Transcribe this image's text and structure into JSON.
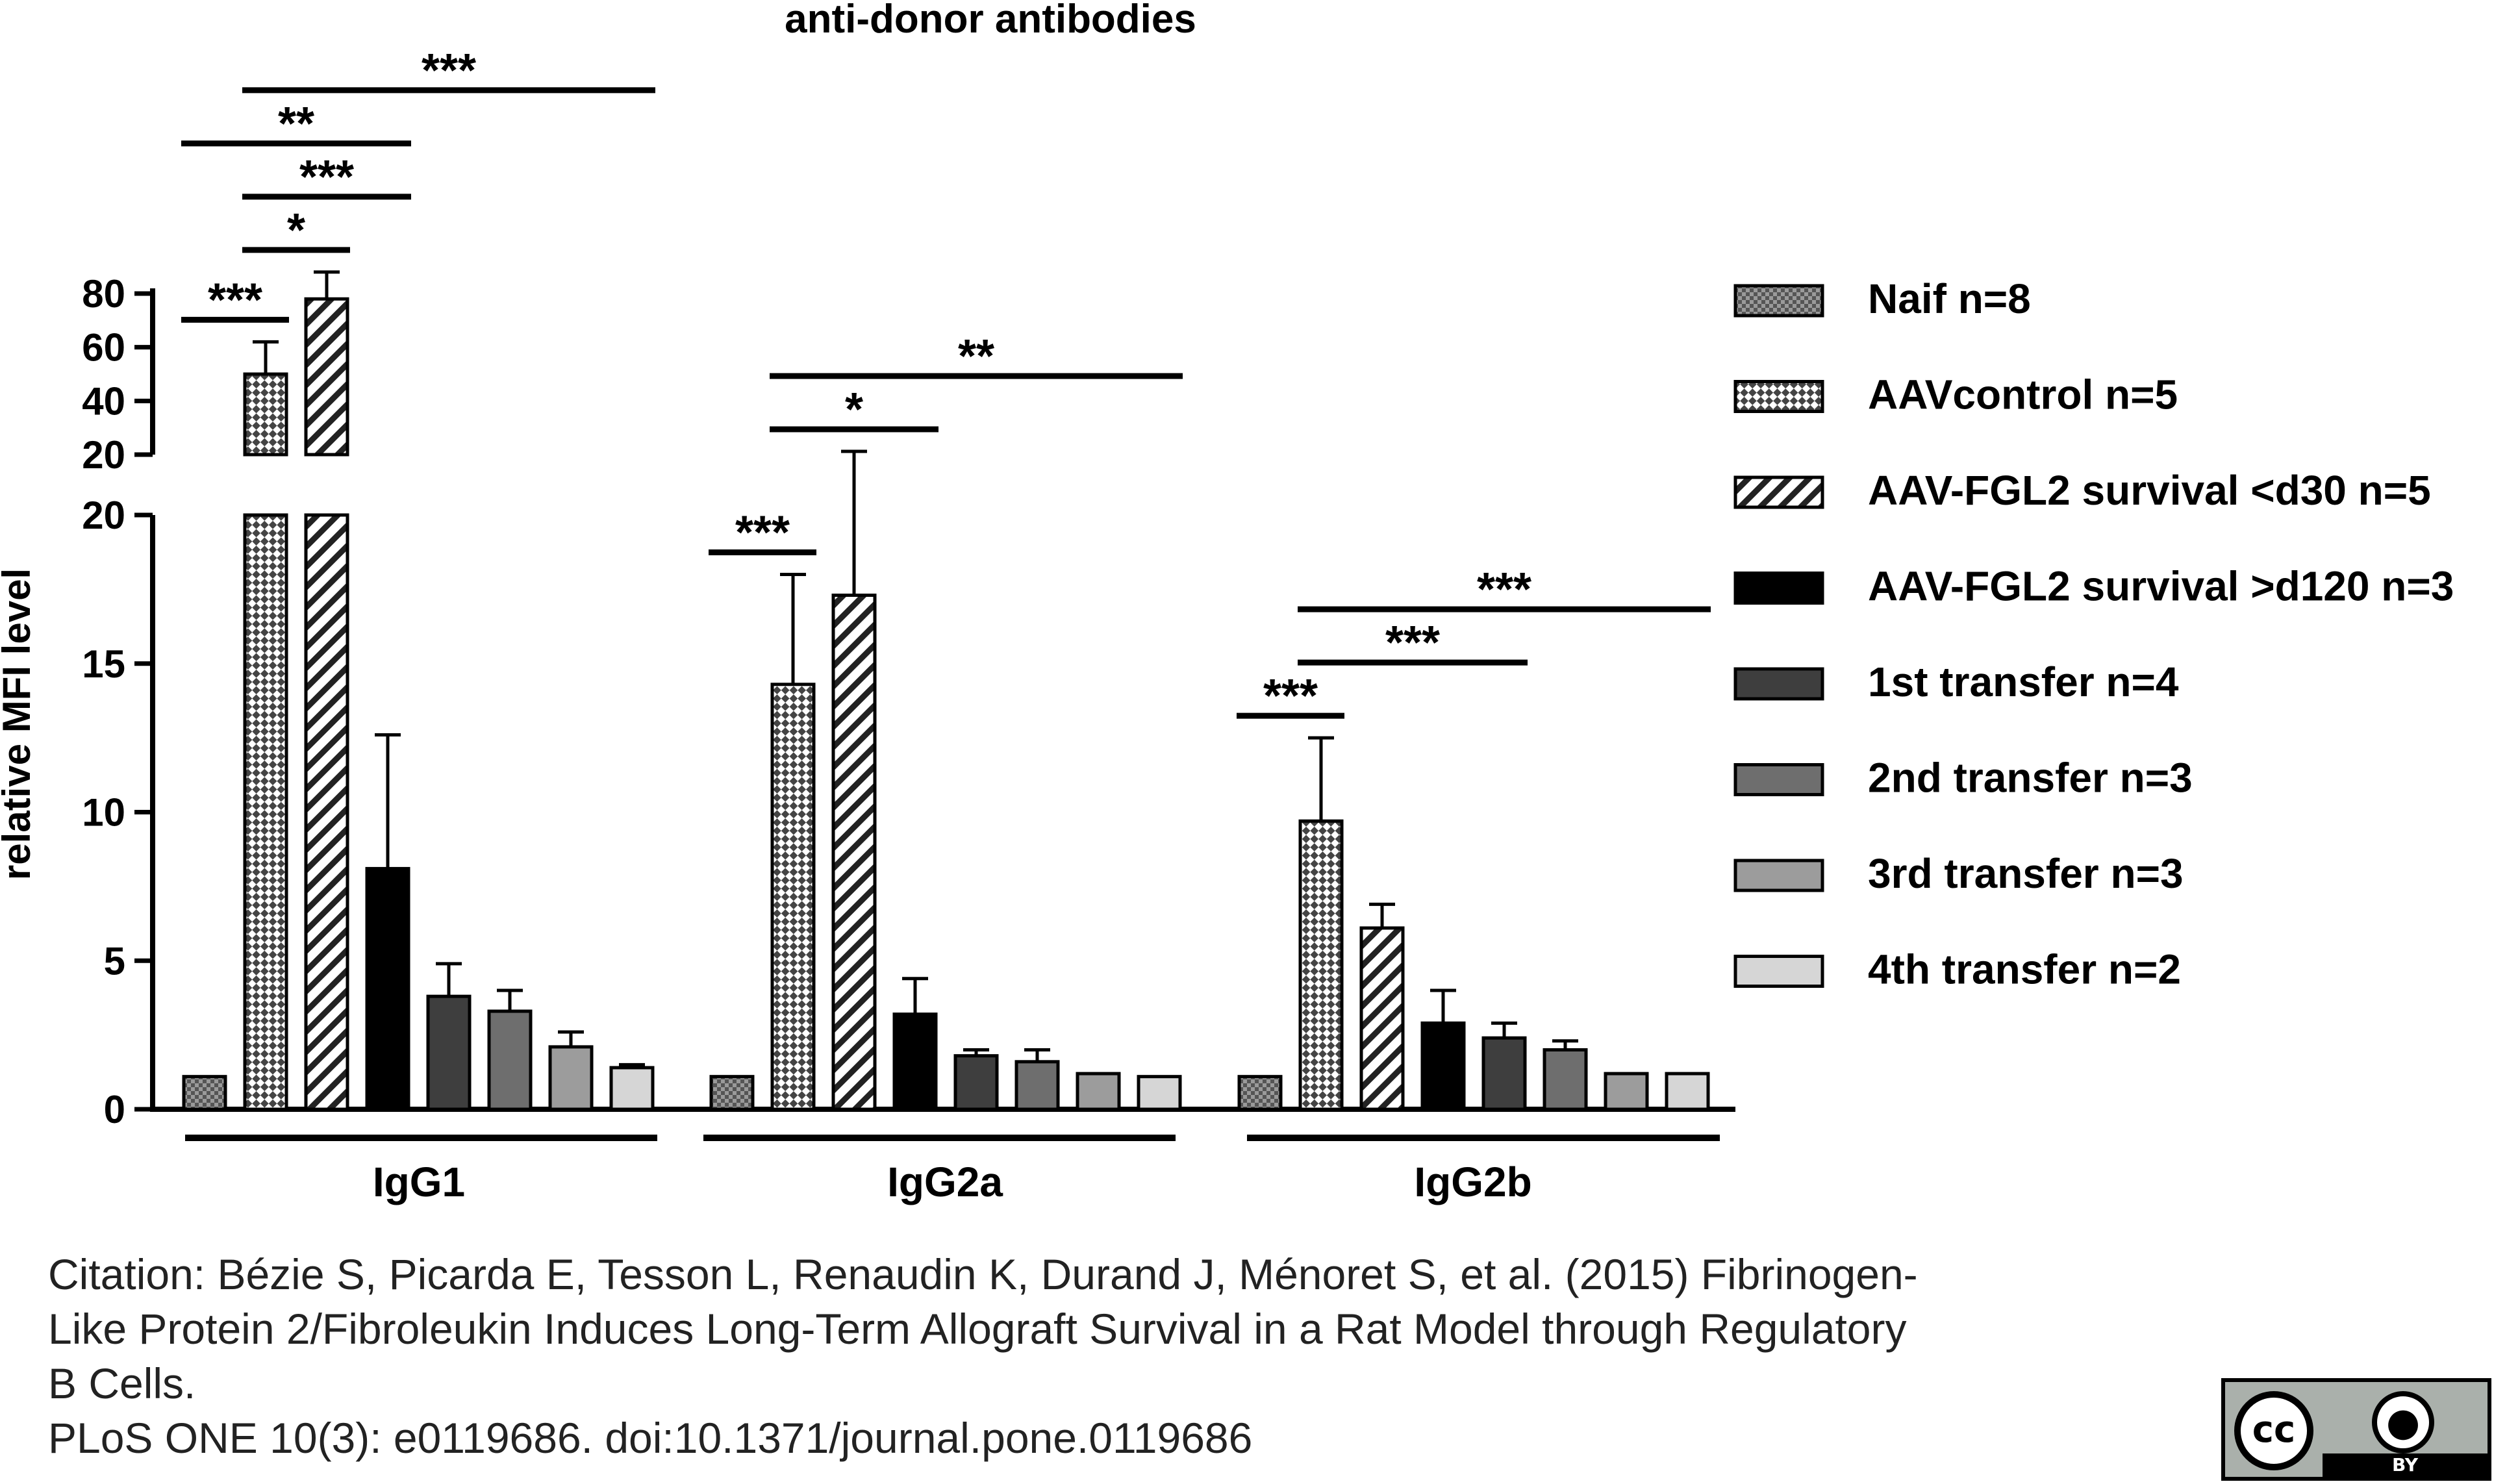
{
  "chart_data": {
    "type": "bar",
    "title": "anti-donor antibodies",
    "ylabel": "relative MFI level",
    "xlabel": "",
    "categories": [
      "IgG1",
      "IgG2a",
      "IgG2b"
    ],
    "y_axis": {
      "broken": true,
      "lower_range": [
        0,
        20
      ],
      "lower_ticks": [
        "0",
        "5",
        "10",
        "15",
        "20"
      ],
      "upper_range": [
        20,
        80
      ],
      "upper_ticks": [
        "20",
        "40",
        "60",
        "80"
      ]
    },
    "series": [
      {
        "name": "Naif n=8",
        "pattern": "dense-checker",
        "values": [
          1.1,
          1.1,
          1.1
        ],
        "errors": [
          0,
          0,
          0
        ]
      },
      {
        "name": "AAVcontrol  n=5",
        "pattern": "checker",
        "values": [
          50,
          14.3,
          9.7
        ],
        "errors": [
          12,
          3.7,
          2.8
        ]
      },
      {
        "name": "AAV-FGL2 survival <d30 n=5",
        "pattern": "diagonal",
        "values": [
          78,
          17.3,
          6.1
        ],
        "errors": [
          10,
          3.9,
          0.8
        ]
      },
      {
        "name": "AAV-FGL2 survival >d120 n=3",
        "pattern": "solid-black",
        "values": [
          8.1,
          3.2,
          2.9
        ],
        "errors": [
          4.5,
          1.2,
          1.1
        ]
      },
      {
        "name": "1st transfer n=4",
        "pattern": "dark-gray",
        "values": [
          3.8,
          1.8,
          2.4
        ],
        "errors": [
          1.1,
          0.2,
          0.5
        ]
      },
      {
        "name": "2nd transfer n=3",
        "pattern": "mid-gray",
        "values": [
          3.3,
          1.6,
          2.0
        ],
        "errors": [
          0.7,
          0.4,
          0.3
        ]
      },
      {
        "name": "3rd transfer n=3",
        "pattern": "light-gray",
        "values": [
          2.1,
          1.2,
          1.2
        ],
        "errors": [
          0.5,
          0,
          0
        ]
      },
      {
        "name": "4th transfer n=2",
        "pattern": "very-light-gray",
        "values": [
          1.4,
          1.1,
          1.2
        ],
        "errors": [
          0.1,
          0,
          0
        ]
      }
    ],
    "significance": [
      {
        "group": 0,
        "from": 0,
        "to": 1,
        "label": "***"
      },
      {
        "group": 0,
        "from": 1,
        "to": 2,
        "label": "*"
      },
      {
        "group": 0,
        "from": 1,
        "to": 3,
        "label": "***"
      },
      {
        "group": 0,
        "from": 0,
        "to": 3,
        "label": "**"
      },
      {
        "group": 0,
        "from": 1,
        "to": 7,
        "label": "***"
      },
      {
        "group": 1,
        "from": 0,
        "to": 1,
        "label": "***"
      },
      {
        "group": 1,
        "from": 1,
        "to": 3,
        "label": "*"
      },
      {
        "group": 1,
        "from": 1,
        "to": 7,
        "label": "**"
      },
      {
        "group": 2,
        "from": 0,
        "to": 1,
        "label": "***"
      },
      {
        "group": 2,
        "from": 1,
        "to": 4,
        "label": "***"
      },
      {
        "group": 2,
        "from": 1,
        "to": 7,
        "label": "***"
      }
    ],
    "legend_placement": "right",
    "grid": false
  },
  "citation": {
    "line1": "Citation: Bézie S, Picarda E, Tesson L, Renaudin K, Durand J, Ménoret S, et al. (2015) Fibrinogen-",
    "line2": "Like Protein 2/Fibroleukin Induces Long-Term Allograft Survival in a Rat Model through Regulatory",
    "line3": "B Cells.",
    "line4": "PLoS ONE 10(3): e0119686. doi:10.1371/journal.pone.0119686"
  },
  "license_badge": {
    "cc": "cc",
    "by": "BY"
  }
}
